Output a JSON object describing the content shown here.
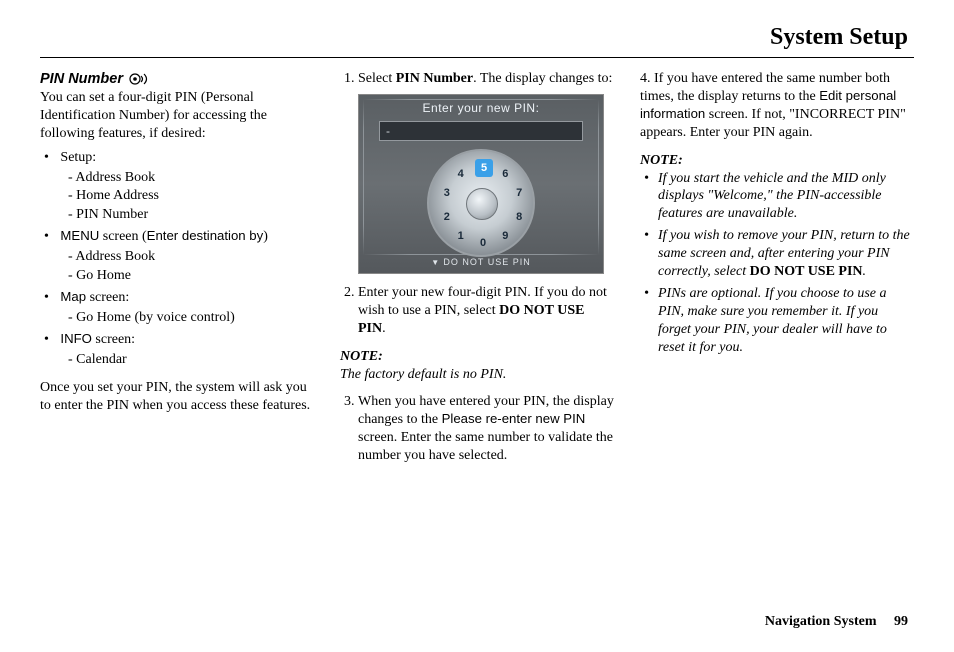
{
  "page_title": "System Setup",
  "footer": {
    "label": "Navigation System",
    "page_number": "99"
  },
  "col1": {
    "heading": "PIN Number",
    "intro": "You can set a four-digit PIN (Personal Identification Number) for accessing the following features, if desired:",
    "groups": [
      {
        "label": "Setup:",
        "items": [
          "Address Book",
          "Home Address",
          "PIN Number"
        ]
      },
      {
        "label_prefix": "MENU",
        "label_mid": " screen (",
        "label_sans": "Enter destination by",
        "label_suffix": ")",
        "items": [
          "Address Book",
          "Go Home"
        ]
      },
      {
        "label_prefix": "Map",
        "label_suffix": " screen:",
        "items": [
          "Go Home (by voice control)"
        ]
      },
      {
        "label_prefix": "INFO",
        "label_suffix": " screen:",
        "items": [
          "Calendar"
        ]
      }
    ],
    "outro": "Once you set your PIN, the system will ask you to enter the PIN when you access these features."
  },
  "col2": {
    "step1_a": "Select ",
    "step1_b": "PIN Number",
    "step1_c": ". The display changes to:",
    "screenshot": {
      "title": "Enter your new PIN:",
      "field_value": "-",
      "footer": "DO NOT USE PIN",
      "digits": [
        "0",
        "1",
        "2",
        "3",
        "4",
        "5",
        "6",
        "7",
        "8",
        "9"
      ],
      "highlight_color": "#3aa0e8"
    },
    "step2_a": "Enter your new four-digit PIN. If you do not wish to use a PIN, select ",
    "step2_b": "DO NOT USE PIN",
    "step2_c": ".",
    "note_label": "NOTE:",
    "note_text": "The factory default is no PIN.",
    "step3_a": "When you have entered your PIN, the display changes to the ",
    "step3_b": "Please re-enter new PIN",
    "step3_c": " screen. Enter the same number to validate the number you have selected."
  },
  "col3": {
    "step4_a": "If you have entered the same number both times, the display returns to the ",
    "step4_b": "Edit personal information",
    "step4_c": " screen. If not, \"INCORRECT PIN\" appears. Enter your PIN again.",
    "note_label": "NOTE:",
    "notes": [
      {
        "text": "If you start the vehicle and the MID only displays \"Welcome,\" the PIN-accessible features are unavailable."
      },
      {
        "text_a": "If you wish to remove your PIN, return to the same screen and, after entering your PIN correctly, select ",
        "bold": "DO NOT USE PIN",
        "text_b": "."
      },
      {
        "text": "PINs are optional. If you choose to use a PIN, make sure you remember it. If you forget your PIN, your dealer will have to reset it for you."
      }
    ]
  }
}
